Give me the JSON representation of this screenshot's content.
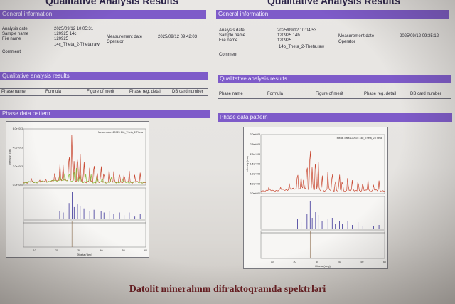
{
  "colors": {
    "section_bar": "#7e5bc9",
    "pattern_red": "#c8462f",
    "pattern_green": "#7fb92e",
    "reference_sticks": "#3b3397",
    "caption": "#6a1e22"
  },
  "reports": [
    {
      "title": "Qualitative Analysis Results",
      "general_header": "General information",
      "fields": {
        "analysis_date_label": "Analysis date",
        "analysis_date": "2025/09/12 10:05:31",
        "sample_name_label": "Sample name",
        "sample_name": "120925 14c",
        "file_name_label": "File name",
        "file_name_1": "120925",
        "file_name_2": "14c_Theta_2-Theta.raw",
        "comment_label": "Comment",
        "measurement_date_label": "Measurement date",
        "measurement_date": "2025/09/12 09:42:03",
        "operator_label": "Operator"
      },
      "qual_header": "Qualitative analysis results",
      "columns": [
        "Phase name",
        "Formula",
        "Figure of merit",
        "Phase reg. detail",
        "DB card number"
      ],
      "phase_header": "Phase data pattern",
      "chart_data": {
        "type": "line",
        "legend": "Meas. data:120925 14c_Theta_2-Theta",
        "ylabel": "Intensity (cps)",
        "xlabel": "2theta (deg)",
        "y_ticks": [
          "6.0e+003",
          "4.0e+003",
          "2.0e+003",
          "0.0e+000"
        ],
        "x_ticks": [
          "10",
          "20",
          "30",
          "40",
          "50",
          "60"
        ],
        "xlim": [
          5,
          60
        ],
        "ylim": [
          0,
          6000
        ],
        "series": [
          {
            "kind": "measured",
            "x": [
              8.5,
              12.3,
              15.2,
              19.1,
              21.4,
              22.8,
              25.5,
              26.8,
              27.8,
              29.3,
              30.5,
              32.2,
              34.8,
              36.7,
              38.1,
              39.9,
              41.2,
              43.6,
              45.6,
              48.2,
              50.3,
              52.6,
              55.1,
              57.5
            ],
            "y": [
              400,
              250,
              180,
              850,
              2000,
              1800,
              3700,
              5800,
              2300,
              3500,
              3100,
              2600,
              1600,
              2500,
              1400,
              1900,
              1200,
              1700,
              1100,
              1400,
              900,
              1300,
              800,
              1000
            ]
          },
          {
            "kind": "second",
            "x": [
              21.5,
              23.5,
              25.5,
              27.6,
              28.9,
              30.4,
              33.0,
              35.5,
              38.0,
              40.5,
              44.5,
              49.5
            ],
            "y": [
              800,
              700,
              1100,
              1400,
              1700,
              1000,
              900,
              800,
              700,
              600,
              500,
              400
            ]
          }
        ],
        "sticks_x": [
          21.3,
          22.9,
          25.5,
          26.9,
          27.8,
          29.3,
          30.5,
          32.2,
          34.8,
          36.7,
          38.1,
          39.9,
          41.2,
          43.6,
          45.6,
          48.2,
          50.3,
          52.6,
          55.1,
          57.5
        ],
        "sticks_y": [
          0.3,
          0.25,
          0.6,
          1.0,
          0.45,
          0.55,
          0.5,
          0.4,
          0.3,
          0.35,
          0.2,
          0.3,
          0.25,
          0.3,
          0.2,
          0.25,
          0.15,
          0.25,
          0.1,
          0.2
        ],
        "marker_x": 26.8
      }
    },
    {
      "title": "Qualitative Analysis Results",
      "general_header": "General information",
      "fields": {
        "analysis_date_label": "Analysis date",
        "analysis_date": "2025/09/12 10:04:53",
        "sample_name_label": "Sample name",
        "sample_name": "120925 14b",
        "file_name_label": "File name",
        "file_name_1": "120925",
        "file_name_2": "14b_Theta_2-Theta.raw",
        "comment_label": "Comment",
        "measurement_date_label": "Measurement date",
        "measurement_date": "2025/09/12 09:35:12",
        "operator_label": "Operator"
      },
      "qual_header": "Qualitative analysis results",
      "columns": [
        "Phase name",
        "Formula",
        "Figure of merit",
        "Phase reg. detail",
        "DB card number"
      ],
      "phase_header": "Phase data pattern",
      "chart_data": {
        "type": "line",
        "legend": "Meas. data:120925 14b_Theta_2-Theta",
        "ylabel": "Intensity (cps)",
        "xlabel": "2theta (deg)",
        "y_ticks": [
          "3.0e+003",
          "2.5e+003",
          "2.0e+003",
          "1.5e+003",
          "1.0e+003",
          "5.0e+002",
          "0.0e+000"
        ],
        "x_ticks": [
          "10",
          "20",
          "30",
          "40",
          "50",
          "60"
        ],
        "xlim": [
          5,
          60
        ],
        "ylim": [
          0,
          3000
        ],
        "series": [
          {
            "kind": "measured",
            "x": [
              8.5,
              13.8,
              17.6,
              21.3,
              22.9,
              24.0,
              25.5,
              26.9,
              27.8,
              29.3,
              30.5,
              32.2,
              34.8,
              36.7,
              38.1,
              39.9,
              41.2,
              43.6,
              45.6,
              48.2,
              50.3,
              52.6,
              55.1,
              57.5
            ],
            "y": [
              150,
              120,
              300,
              1100,
              700,
              500,
              1600,
              2900,
              1200,
              1900,
              1500,
              900,
              1000,
              1200,
              700,
              900,
              600,
              800,
              500,
              700,
              400,
              600,
              300,
              500
            ]
          }
        ],
        "sticks_x": [
          21.3,
          22.9,
          25.5,
          26.9,
          27.8,
          29.3,
          30.5,
          32.2,
          34.8,
          36.7,
          38.1,
          39.9,
          41.2,
          43.6,
          45.6,
          48.2,
          50.3,
          52.6,
          55.1,
          57.5
        ],
        "sticks_y": [
          0.35,
          0.25,
          0.55,
          1.0,
          0.4,
          0.6,
          0.5,
          0.3,
          0.35,
          0.4,
          0.2,
          0.3,
          0.2,
          0.3,
          0.15,
          0.25,
          0.1,
          0.2,
          0.1,
          0.15
        ],
        "marker_x": 26.9
      }
    }
  ],
  "caption": "Datolit mineralının difraktoqramda spektrləri"
}
